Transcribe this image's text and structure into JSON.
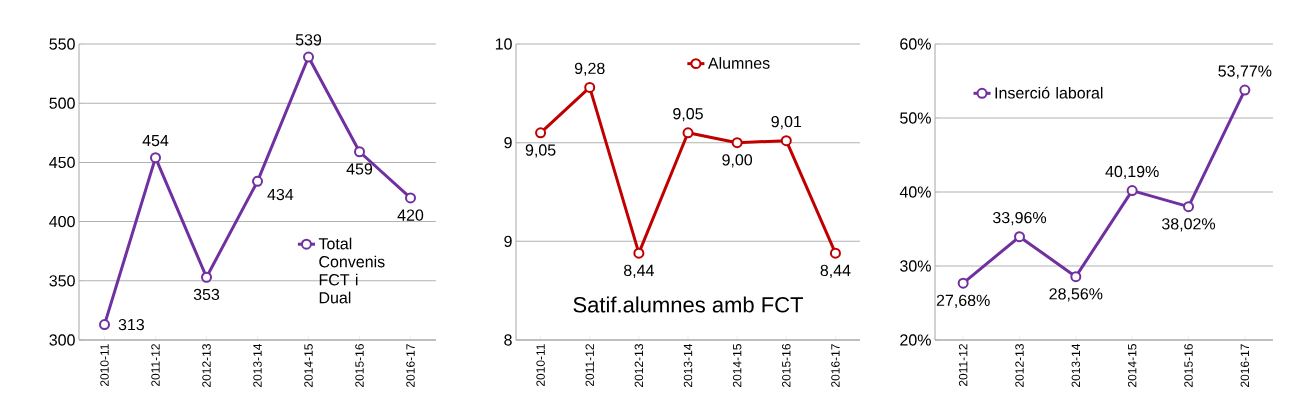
{
  "chart_data": [
    {
      "type": "line",
      "categories": [
        "2010-11",
        "2011-12",
        "2012-13",
        "2013-14",
        "2014-15",
        "2015-16",
        "2016-17"
      ],
      "series": [
        {
          "name": "Total Convenis FCT i Dual",
          "color": "#7030a0",
          "values": [
            313,
            454,
            353,
            434,
            539,
            459,
            420
          ]
        }
      ],
      "ylim": [
        300,
        550
      ],
      "yticks": [
        300,
        350,
        400,
        450,
        500,
        550
      ],
      "grid": "y",
      "legend": "right",
      "marker": "circle",
      "line_style": "solid",
      "data_labels": true
    },
    {
      "type": "line",
      "categories": [
        "2010-11",
        "2011-12",
        "2012-13",
        "2013-14",
        "2014-15",
        "2015-16",
        "2016-17"
      ],
      "series": [
        {
          "name": "Alumnes",
          "color": "#c00000",
          "values": [
            9.05,
            9.28,
            8.44,
            9.05,
            9.0,
            9.01,
            8.44
          ],
          "value_labels": [
            "9,05",
            "9,28",
            "8,44",
            "9,05",
            "9,00",
            "9,01",
            "8,44"
          ]
        }
      ],
      "ylim": [
        8,
        9.5
      ],
      "yticks": [
        8,
        {
          "value": 8.5,
          "label": "9"
        },
        9,
        {
          "value": 9.5,
          "label": "10"
        }
      ],
      "grid": "y",
      "legend": "top right",
      "marker": "circle",
      "line_style": "solid",
      "annotations": [
        "Satif.alumnes amb FCT"
      ]
    },
    {
      "type": "line",
      "categories": [
        "2011-12",
        "2012-13",
        "2013-14",
        "2014-15",
        "2015-16",
        "2016-17"
      ],
      "series": [
        {
          "name": "Inserció laboral",
          "color": "#7030a0",
          "values": [
            27.68,
            33.96,
            28.56,
            40.19,
            38.02,
            53.77
          ],
          "value_labels": [
            "27,68%",
            "33,96%",
            "28,56%",
            "40,19%",
            "38,02%",
            "53,77%"
          ]
        }
      ],
      "ylim": [
        20,
        60
      ],
      "yticks": [
        {
          "value": 20,
          "label": "20%"
        },
        {
          "value": 30,
          "label": "30%"
        },
        {
          "value": 40,
          "label": "40%"
        },
        {
          "value": 50,
          "label": "50%"
        },
        {
          "value": 60,
          "label": "60%"
        }
      ],
      "grid": "y",
      "legend": "top left",
      "marker": "circle",
      "line_style": "solid"
    }
  ]
}
